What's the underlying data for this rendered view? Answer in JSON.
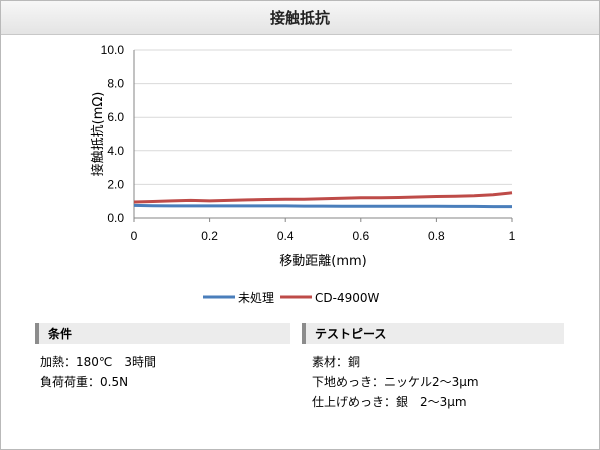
{
  "title": "接触抵抗",
  "chart_data": {
    "type": "line",
    "xlabel": "移動距離(mm)",
    "ylabel": "接触抵抗(mΩ)",
    "xlim": [
      0,
      1
    ],
    "ylim": [
      0,
      10
    ],
    "x_ticks": [
      "0",
      "0.2",
      "0.4",
      "0.6",
      "0.8",
      "1"
    ],
    "y_ticks": [
      "0.0",
      "2.0",
      "4.0",
      "6.0",
      "8.0",
      "10.0"
    ],
    "legend_position": "bottom",
    "grid": "horizontal",
    "series": [
      {
        "name": "未処理",
        "color": "#4a7ebb",
        "x": [
          0,
          0.05,
          0.1,
          0.15,
          0.2,
          0.25,
          0.3,
          0.35,
          0.4,
          0.45,
          0.5,
          0.55,
          0.6,
          0.65,
          0.7,
          0.75,
          0.8,
          0.85,
          0.9,
          0.95,
          1.0
        ],
        "y": [
          0.75,
          0.73,
          0.72,
          0.72,
          0.72,
          0.72,
          0.72,
          0.72,
          0.72,
          0.71,
          0.71,
          0.7,
          0.7,
          0.7,
          0.7,
          0.7,
          0.7,
          0.69,
          0.69,
          0.68,
          0.68
        ]
      },
      {
        "name": "CD-4900W",
        "color": "#be4b48",
        "x": [
          0,
          0.05,
          0.1,
          0.15,
          0.2,
          0.25,
          0.3,
          0.35,
          0.4,
          0.45,
          0.5,
          0.55,
          0.6,
          0.65,
          0.7,
          0.75,
          0.8,
          0.85,
          0.9,
          0.95,
          1.0
        ],
        "y": [
          0.95,
          0.98,
          1.02,
          1.05,
          1.02,
          1.05,
          1.08,
          1.1,
          1.12,
          1.12,
          1.15,
          1.18,
          1.2,
          1.2,
          1.22,
          1.25,
          1.28,
          1.3,
          1.32,
          1.38,
          1.5
        ]
      }
    ]
  },
  "conditions": {
    "header": "条件",
    "lines": [
      "加熱：180℃　3時間",
      "負荷荷重：0.5N"
    ]
  },
  "test_piece": {
    "header": "テストピース",
    "lines": [
      "素材：銅",
      "下地めっき：ニッケル2～3μm",
      "仕上げめっき：銀　2～3μm"
    ]
  }
}
